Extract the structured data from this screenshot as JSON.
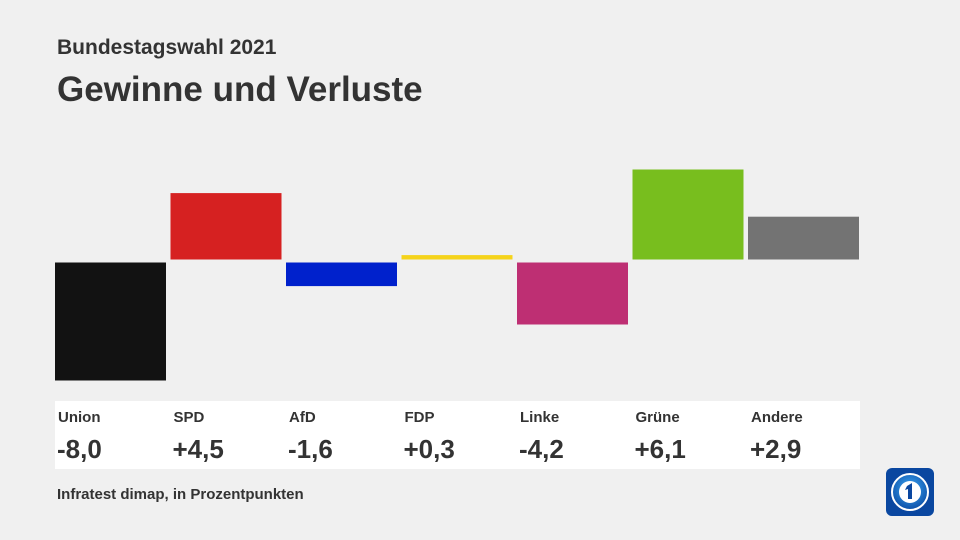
{
  "header": {
    "subtitle": "Bundestagswahl 2021",
    "title": "Gewinne und Verluste"
  },
  "source": "Infratest dimap, in Prozentpunkten",
  "logo_icon": "ard-tagesschau-logo-icon",
  "chart_data": {
    "type": "bar",
    "title": "Gewinne und Verluste",
    "subtitle": "Bundestagswahl 2021",
    "categories": [
      "Union",
      "SPD",
      "AfD",
      "FDP",
      "Linke",
      "Grüne",
      "Andere"
    ],
    "values": [
      -8.0,
      4.5,
      -1.6,
      0.3,
      -4.2,
      6.1,
      2.9
    ],
    "value_labels": [
      "-8,0",
      "+4,5",
      "-1,6",
      "+0,3",
      "-4,2",
      "+6,1",
      "+2,9"
    ],
    "colors": [
      "#121212",
      "#d62121",
      "#0021cc",
      "#f5d31b",
      "#be2f73",
      "#78be1e",
      "#737373"
    ],
    "ylim": [
      -8.0,
      6.1
    ],
    "grid": false,
    "legend": "none",
    "xlabel": "",
    "ylabel": ""
  }
}
